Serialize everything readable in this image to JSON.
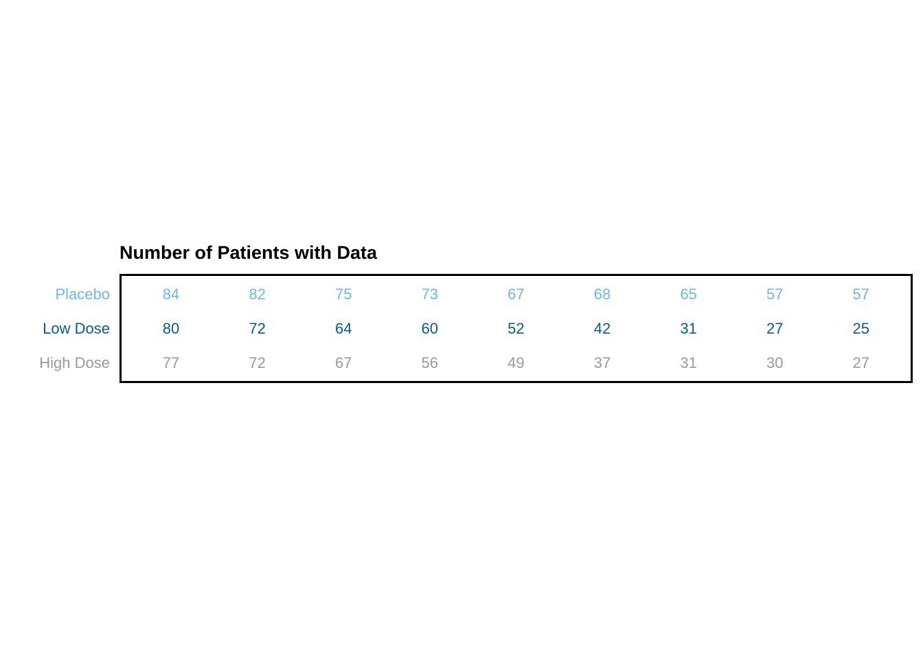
{
  "chart_data": {
    "type": "table",
    "title": "Number of Patients with Data",
    "rows": [
      {
        "name": "Placebo",
        "color": "#6cb8e6",
        "values": [
          84,
          82,
          75,
          73,
          67,
          68,
          65,
          57,
          57
        ]
      },
      {
        "name": "Low Dose",
        "color": "#0b5a89",
        "values": [
          80,
          72,
          64,
          60,
          52,
          42,
          31,
          27,
          25
        ]
      },
      {
        "name": "High Dose",
        "color": "#999999",
        "values": [
          77,
          72,
          67,
          56,
          49,
          37,
          31,
          30,
          27
        ]
      }
    ],
    "border_color": "#000000"
  }
}
